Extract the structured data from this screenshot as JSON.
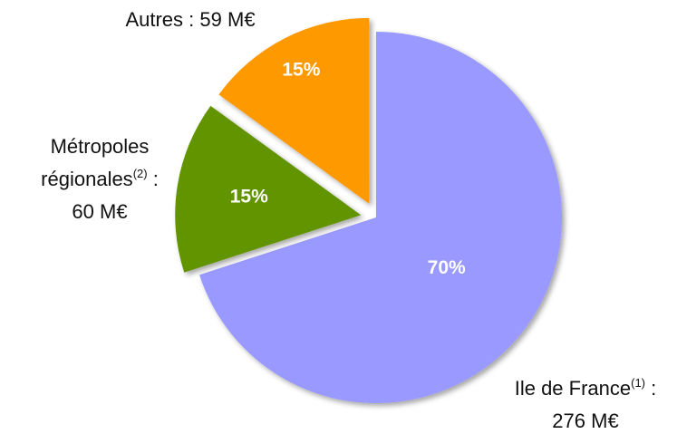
{
  "chart_data": {
    "type": "pie",
    "categories": [
      "Ile de France",
      "Métropoles régionales",
      "Autres"
    ],
    "category_notes": [
      "(1)",
      "(2)",
      null
    ],
    "separator": ":",
    "amount_labels": [
      "276 M€",
      "60 M€",
      "59 M€"
    ],
    "values": [
      70,
      15,
      15
    ],
    "value_labels": [
      "70%",
      "15%",
      "15%"
    ],
    "colors": [
      "#9999ff",
      "#629400",
      "#ff9900"
    ],
    "exploded": [
      false,
      true,
      true
    ]
  }
}
